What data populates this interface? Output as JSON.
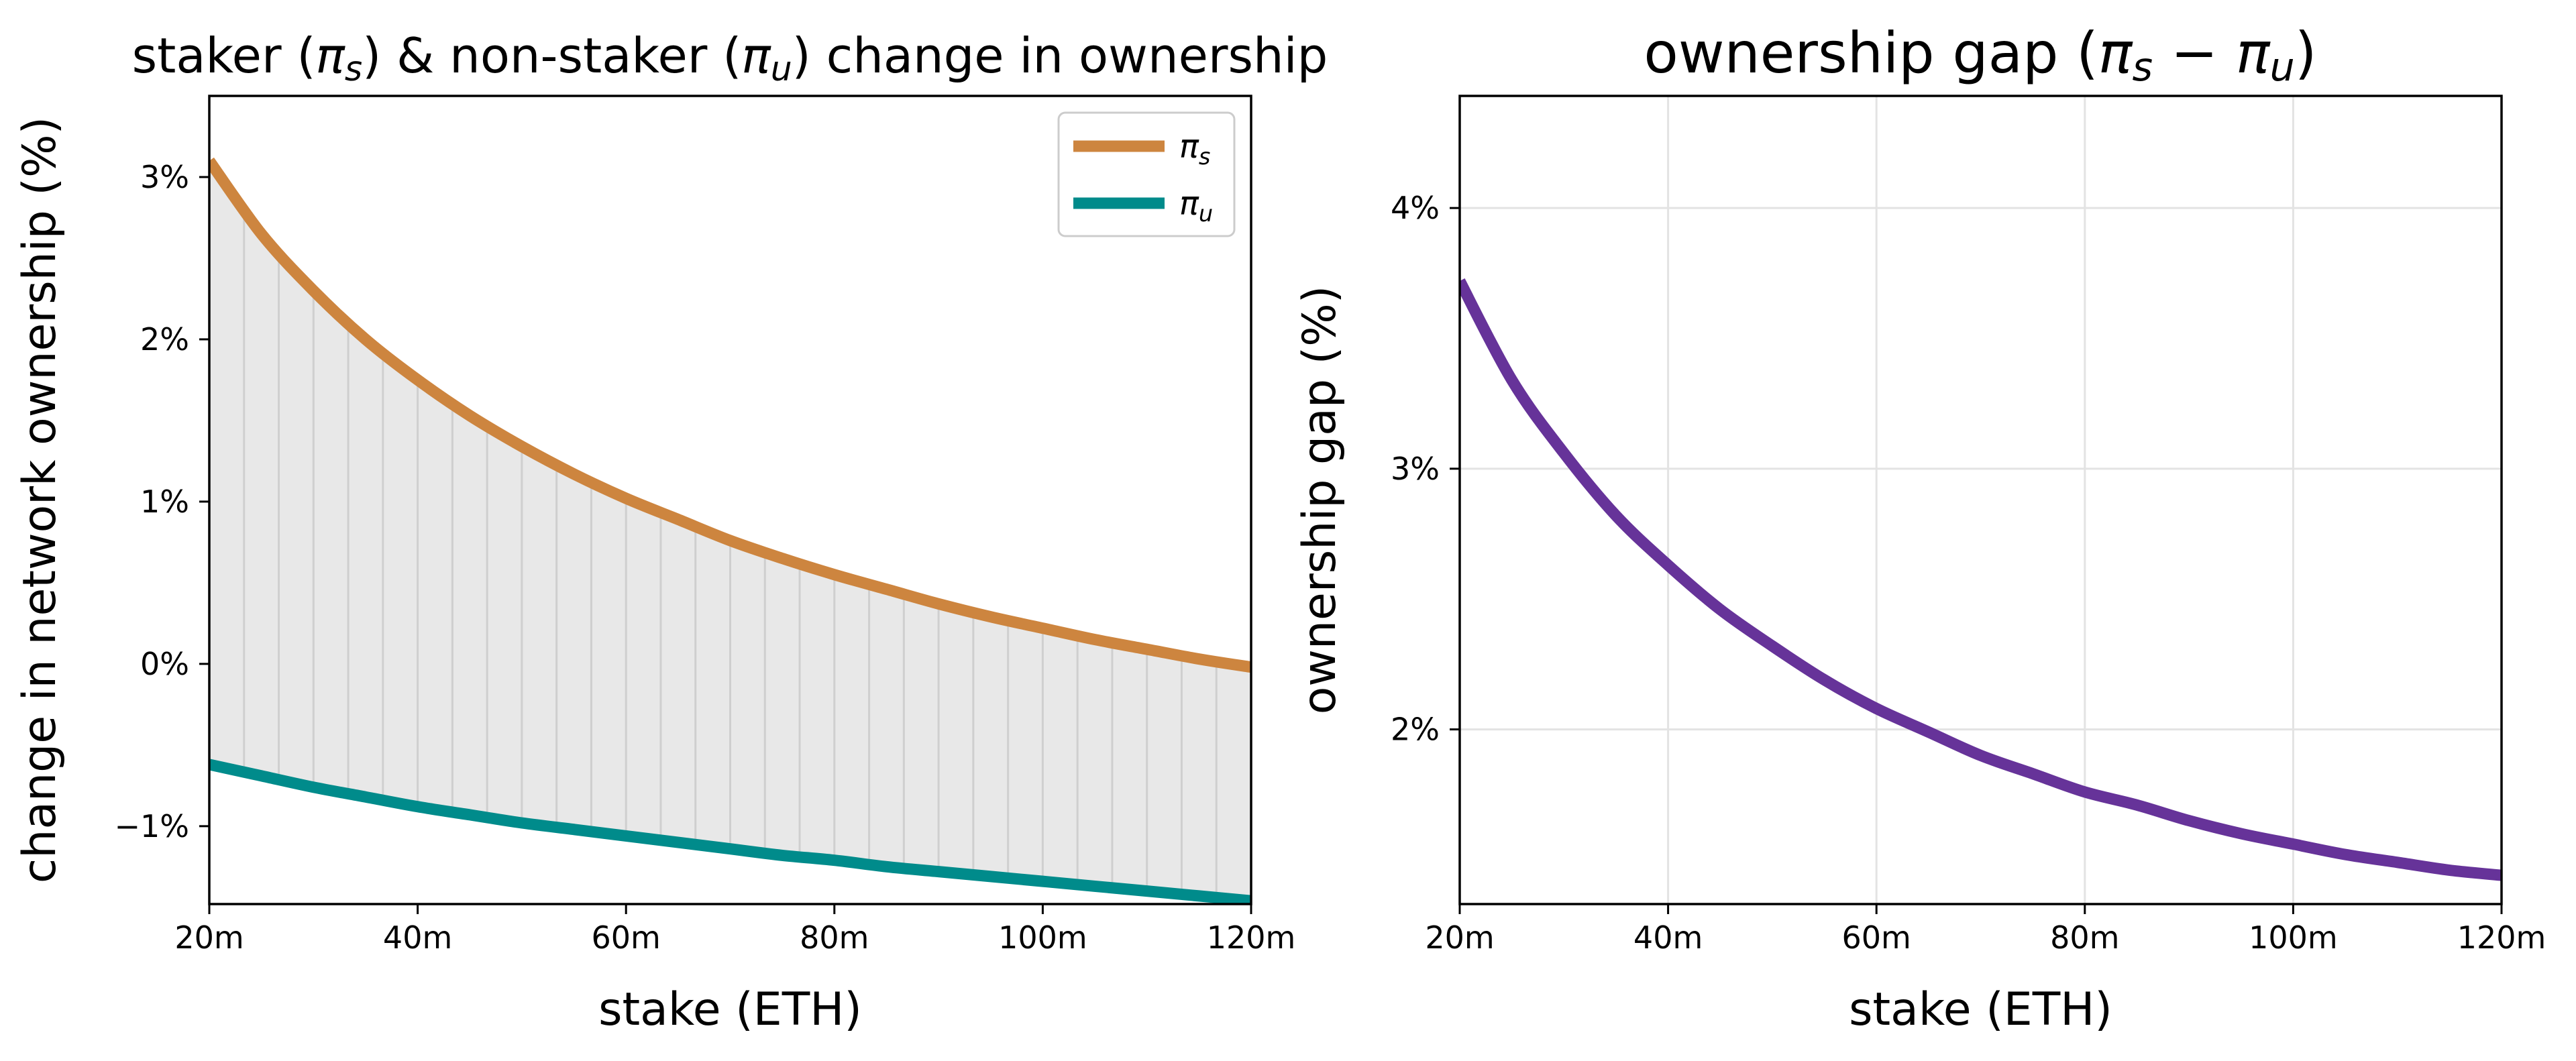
{
  "chart_data": [
    {
      "type": "line",
      "title": "staker (πs) & non-staker (πu) change in ownership",
      "title_parts": {
        "pre": "staker (",
        "sym1": "π",
        "sub1": "s",
        "mid": ") & non-staker (",
        "sym2": "π",
        "sub2": "u",
        "post": ") change in ownership"
      },
      "xlabel": "stake (ETH)",
      "ylabel": "change in network ownership (%)",
      "xlim": [
        20,
        120
      ],
      "ylim": [
        -1.48,
        3.5
      ],
      "xticks": [
        {
          "v": 20,
          "label": "20m"
        },
        {
          "v": 40,
          "label": "40m"
        },
        {
          "v": 60,
          "label": "60m"
        },
        {
          "v": 80,
          "label": "80m"
        },
        {
          "v": 100,
          "label": "100m"
        },
        {
          "v": 120,
          "label": "120m"
        }
      ],
      "yticks": [
        {
          "v": -1,
          "label": "−1%"
        },
        {
          "v": 0,
          "label": "0%"
        },
        {
          "v": 1,
          "label": "1%"
        },
        {
          "v": 2,
          "label": "2%"
        },
        {
          "v": 3,
          "label": "3%"
        }
      ],
      "grid": false,
      "legend": "top-right",
      "fill_between": true,
      "series": [
        {
          "name": "πs",
          "symbol": "π",
          "sub": "s",
          "color": "#CD853F",
          "x": [
            20,
            25,
            30,
            35,
            40,
            45,
            50,
            55,
            60,
            65,
            70,
            75,
            80,
            85,
            90,
            95,
            100,
            105,
            110,
            115,
            120
          ],
          "y": [
            3.1,
            2.65,
            2.3,
            2.0,
            1.75,
            1.53,
            1.34,
            1.17,
            1.02,
            0.89,
            0.76,
            0.65,
            0.55,
            0.46,
            0.37,
            0.29,
            0.22,
            0.15,
            0.09,
            0.03,
            -0.02
          ]
        },
        {
          "name": "πu",
          "symbol": "π",
          "sub": "u",
          "color": "#008B8B",
          "x": [
            20,
            25,
            30,
            35,
            40,
            45,
            50,
            55,
            60,
            65,
            70,
            75,
            80,
            85,
            90,
            95,
            100,
            105,
            110,
            115,
            120
          ],
          "y": [
            -0.62,
            -0.69,
            -0.76,
            -0.82,
            -0.88,
            -0.93,
            -0.98,
            -1.02,
            -1.06,
            -1.1,
            -1.14,
            -1.18,
            -1.21,
            -1.25,
            -1.28,
            -1.31,
            -1.34,
            -1.37,
            -1.4,
            -1.43,
            -1.46
          ]
        }
      ]
    },
    {
      "type": "line",
      "title": "ownership gap (πs − πu)",
      "title_parts": {
        "pre": "ownership gap (",
        "sym1": "π",
        "sub1": "s",
        "mid": " − ",
        "sym2": "π",
        "sub2": "u",
        "post": ")"
      },
      "xlabel": "stake (ETH)",
      "ylabel": "ownership gap (%)",
      "xlim": [
        20,
        120
      ],
      "ylim": [
        1.33,
        4.43
      ],
      "xticks": [
        {
          "v": 20,
          "label": "20m"
        },
        {
          "v": 40,
          "label": "40m"
        },
        {
          "v": 60,
          "label": "60m"
        },
        {
          "v": 80,
          "label": "80m"
        },
        {
          "v": 100,
          "label": "100m"
        },
        {
          "v": 120,
          "label": "120m"
        }
      ],
      "yticks": [
        {
          "v": 2,
          "label": "2%"
        },
        {
          "v": 3,
          "label": "3%"
        },
        {
          "v": 4,
          "label": "4%"
        }
      ],
      "grid": true,
      "series": [
        {
          "color": "#663399",
          "x": [
            20,
            25,
            30,
            35,
            40,
            45,
            50,
            55,
            60,
            65,
            70,
            75,
            80,
            85,
            90,
            95,
            100,
            105,
            110,
            115,
            120
          ],
          "y": [
            3.72,
            3.34,
            3.06,
            2.82,
            2.63,
            2.46,
            2.32,
            2.19,
            2.08,
            1.99,
            1.9,
            1.83,
            1.76,
            1.71,
            1.65,
            1.6,
            1.56,
            1.52,
            1.49,
            1.46,
            1.44
          ]
        }
      ]
    }
  ]
}
